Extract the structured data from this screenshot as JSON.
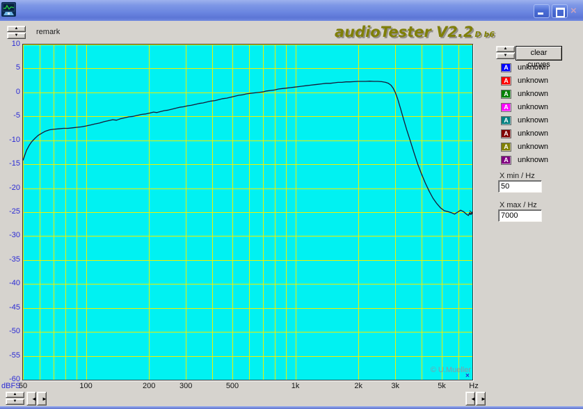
{
  "header": {
    "remark_label": "remark",
    "logo_text": "audioTester V2.2",
    "logo_suffix": "D b6"
  },
  "glyphs": {
    "up": "▲",
    "down": "▼",
    "left": "◄",
    "right": "►",
    "close": "×",
    "cursor_marker": "×"
  },
  "icons": {
    "app": "oscilloscope-icon",
    "minimize": "minimize-icon",
    "maximize": "maximize-icon",
    "close": "close-icon"
  },
  "legend": {
    "clear_button_label": "clear curves",
    "marker_letter": "A",
    "items": [
      {
        "label": "unknown",
        "color": "#0000fe"
      },
      {
        "label": "unknown",
        "color": "#fe0000"
      },
      {
        "label": "unknown",
        "color": "#008000"
      },
      {
        "label": "unknown",
        "color": "#ff00ff"
      },
      {
        "label": "unknown",
        "color": "#008080"
      },
      {
        "label": "unknown",
        "color": "#800000"
      },
      {
        "label": "unknown",
        "color": "#808000"
      },
      {
        "label": "unknown",
        "color": "#800080"
      }
    ]
  },
  "controls": {
    "x_min": {
      "label": "X min / Hz",
      "value": "50"
    },
    "x_max": {
      "label": "X max / Hz",
      "value": "7000"
    }
  },
  "chart_data": {
    "type": "line",
    "title": "",
    "xlabel": "Hz",
    "ylabel": "dBFS",
    "x_scale": "log",
    "xlim": [
      50,
      7000
    ],
    "ylim": [
      -60,
      10
    ],
    "y_tick_step": 5,
    "x_ticks": [
      [
        50,
        "50"
      ],
      [
        100,
        "100"
      ],
      [
        200,
        "200"
      ],
      [
        300,
        "300"
      ],
      [
        500,
        "500"
      ],
      [
        1000,
        "1k"
      ],
      [
        2000,
        "2k"
      ],
      [
        3000,
        "3k"
      ],
      [
        5000,
        "5k"
      ]
    ],
    "grid": true,
    "background_color": "#00f2f2",
    "grid_color": "#f0f000",
    "axis_label_color": "#2a2ad4",
    "watermark": "© U.Mueller",
    "series": [
      {
        "name": "unknown",
        "color": "#181836",
        "points": [
          [
            50,
            -14.2
          ],
          [
            51,
            -13.1
          ],
          [
            52,
            -12.1
          ],
          [
            53.5,
            -11.1
          ],
          [
            55,
            -10.3
          ],
          [
            57,
            -9.6
          ],
          [
            59,
            -9.0
          ],
          [
            61.5,
            -8.5
          ],
          [
            64,
            -8.1
          ],
          [
            67,
            -7.8
          ],
          [
            70,
            -7.7
          ],
          [
            74,
            -7.6
          ],
          [
            78,
            -7.5
          ],
          [
            82,
            -7.5
          ],
          [
            86,
            -7.4
          ],
          [
            90,
            -7.3
          ],
          [
            95,
            -7.2
          ],
          [
            100,
            -7.0
          ],
          [
            105,
            -6.8
          ],
          [
            110,
            -6.6
          ],
          [
            116,
            -6.4
          ],
          [
            122,
            -6.1
          ],
          [
            128,
            -5.9
          ],
          [
            134,
            -5.7
          ],
          [
            140,
            -5.8
          ],
          [
            146,
            -5.5
          ],
          [
            153,
            -5.3
          ],
          [
            160,
            -5.1
          ],
          [
            168,
            -5.0
          ],
          [
            176,
            -4.8
          ],
          [
            184,
            -4.6
          ],
          [
            193,
            -4.5
          ],
          [
            202,
            -4.3
          ],
          [
            210,
            -4.1
          ],
          [
            218,
            -4.2
          ],
          [
            227,
            -4.0
          ],
          [
            237,
            -3.8
          ],
          [
            247,
            -3.7
          ],
          [
            257,
            -3.5
          ],
          [
            268,
            -3.3
          ],
          [
            280,
            -3.1
          ],
          [
            292,
            -3.0
          ],
          [
            305,
            -2.8
          ],
          [
            318,
            -2.7
          ],
          [
            332,
            -2.5
          ],
          [
            347,
            -2.3
          ],
          [
            362,
            -2.2
          ],
          [
            378,
            -2.0
          ],
          [
            395,
            -1.8
          ],
          [
            413,
            -1.7
          ],
          [
            431,
            -1.5
          ],
          [
            450,
            -1.3
          ],
          [
            470,
            -1.2
          ],
          [
            491,
            -1.0
          ],
          [
            513,
            -0.8
          ],
          [
            536,
            -0.6
          ],
          [
            560,
            -0.5
          ],
          [
            585,
            -0.3
          ],
          [
            611,
            -0.2
          ],
          [
            638,
            -0.1
          ],
          [
            667,
            0.0
          ],
          [
            697,
            0.1
          ],
          [
            728,
            0.3
          ],
          [
            760,
            0.4
          ],
          [
            794,
            0.5
          ],
          [
            830,
            0.7
          ],
          [
            867,
            0.8
          ],
          [
            906,
            0.9
          ],
          [
            946,
            1.0
          ],
          [
            988,
            1.1
          ],
          [
            1032,
            1.2
          ],
          [
            1078,
            1.3
          ],
          [
            1126,
            1.4
          ],
          [
            1176,
            1.5
          ],
          [
            1229,
            1.6
          ],
          [
            1284,
            1.7
          ],
          [
            1341,
            1.8
          ],
          [
            1401,
            1.9
          ],
          [
            1463,
            1.9
          ],
          [
            1529,
            2.0
          ],
          [
            1597,
            2.1
          ],
          [
            1668,
            2.1
          ],
          [
            1743,
            2.2
          ],
          [
            1821,
            2.2
          ],
          [
            1902,
            2.25
          ],
          [
            1987,
            2.3
          ],
          [
            2076,
            2.3
          ],
          [
            2168,
            2.3
          ],
          [
            2265,
            2.35
          ],
          [
            2366,
            2.3
          ],
          [
            2472,
            2.3
          ],
          [
            2582,
            2.25
          ],
          [
            2697,
            2.1
          ],
          [
            2780,
            1.9
          ],
          [
            2860,
            1.5
          ],
          [
            2930,
            0.9
          ],
          [
            3000,
            0.0
          ],
          [
            3080,
            -1.4
          ],
          [
            3170,
            -3.2
          ],
          [
            3280,
            -5.5
          ],
          [
            3400,
            -7.8
          ],
          [
            3530,
            -10.0
          ],
          [
            3680,
            -12.5
          ],
          [
            3840,
            -15.0
          ],
          [
            4000,
            -17.0
          ],
          [
            4170,
            -18.9
          ],
          [
            4350,
            -20.6
          ],
          [
            4540,
            -22.1
          ],
          [
            4730,
            -23.2
          ],
          [
            4930,
            -24.1
          ],
          [
            5140,
            -24.7
          ],
          [
            5350,
            -24.9
          ],
          [
            5550,
            -25.1
          ],
          [
            5750,
            -25.4
          ],
          [
            5950,
            -25.0
          ],
          [
            6150,
            -24.6
          ],
          [
            6350,
            -24.9
          ],
          [
            6550,
            -25.4
          ],
          [
            6700,
            -25.7
          ],
          [
            6800,
            -25.1
          ],
          [
            6900,
            -25.5
          ],
          [
            7000,
            -25.1
          ]
        ]
      }
    ]
  },
  "colors": {
    "window_bg": "#d6d3ce",
    "titlebar_blue": "#6a85e0",
    "logo_olive": "#7f7f08",
    "plot_cyan": "#00f2f2",
    "grid_yellow": "#f0f000",
    "axis_blue": "#2a2ad4"
  }
}
